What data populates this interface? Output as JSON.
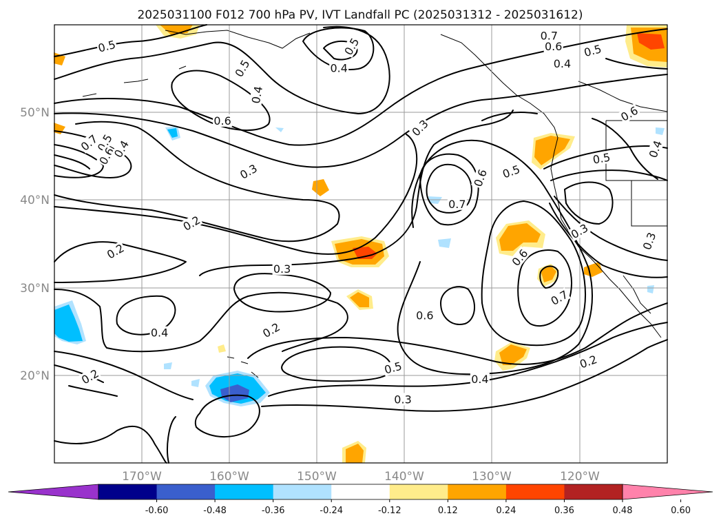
{
  "title": "2025031100 F012 700 hPa PV, IVT Landfall PC (2025031312 - 2025031612)",
  "lat_labels": [
    {
      "text": "50°N",
      "lat": 50
    },
    {
      "text": "40°N",
      "lat": 40
    },
    {
      "text": "30°N",
      "lat": 30
    },
    {
      "text": "20°N",
      "lat": 20
    }
  ],
  "lon_labels": [
    {
      "text": "170°W",
      "lon": -170
    },
    {
      "text": "160°W",
      "lon": -160
    },
    {
      "text": "150°W",
      "lon": -150
    },
    {
      "text": "140°W",
      "lon": -140
    },
    {
      "text": "130°W",
      "lon": -130
    },
    {
      "text": "120°W",
      "lon": -120
    }
  ],
  "extent": {
    "lon_min": -180,
    "lon_max": -110,
    "lat_min": 10,
    "lat_max": 60
  },
  "colorbar": {
    "colors": [
      "#9932cc",
      "#00008b",
      "#3a5fcd",
      "#00bfff",
      "#b0e2ff",
      "#ffffff",
      "#ffec8b",
      "#ffa500",
      "#ff4500",
      "#b22222",
      "#ff82ab"
    ],
    "ticks": [
      "-0.60",
      "-0.48",
      "-0.36",
      "-0.24",
      "-0.12",
      "0.12",
      "0.24",
      "0.36",
      "0.48",
      "0.60"
    ]
  },
  "contour_labels": [
    {
      "text": "0.5",
      "lon": -174,
      "lat": 57.5,
      "rot": -15
    },
    {
      "text": "0.5",
      "lon": -158.5,
      "lat": 55,
      "rot": -60
    },
    {
      "text": "0.4",
      "lon": -156.8,
      "lat": 52,
      "rot": -80
    },
    {
      "text": "0.5",
      "lon": -146,
      "lat": 57.5,
      "rot": -60
    },
    {
      "text": "0.4",
      "lon": -147.5,
      "lat": 55,
      "rot": 0
    },
    {
      "text": "0.7",
      "lon": -123.5,
      "lat": 58.7,
      "rot": 0
    },
    {
      "text": "0.6",
      "lon": -123,
      "lat": 57.5,
      "rot": 0
    },
    {
      "text": "0.5",
      "lon": -118.5,
      "lat": 57,
      "rot": -15
    },
    {
      "text": "0.4",
      "lon": -122,
      "lat": 55.5,
      "rot": 0
    },
    {
      "text": "0.6",
      "lon": -114.3,
      "lat": 49.8,
      "rot": -30
    },
    {
      "text": "0.6",
      "lon": -160.8,
      "lat": 49,
      "rot": 0
    },
    {
      "text": "0.3",
      "lon": -138.2,
      "lat": 48.2,
      "rot": -45
    },
    {
      "text": "0.7",
      "lon": -176,
      "lat": 46.5,
      "rot": -40
    },
    {
      "text": "0.5",
      "lon": -174.2,
      "lat": 46.5,
      "rot": -60
    },
    {
      "text": "0.6",
      "lon": -174,
      "lat": 45,
      "rot": -60
    },
    {
      "text": "0.4",
      "lon": -172.3,
      "lat": 45.8,
      "rot": -60
    },
    {
      "text": "0.3",
      "lon": -157.8,
      "lat": 43.2,
      "rot": -30
    },
    {
      "text": "0.6",
      "lon": -131.3,
      "lat": 42.5,
      "rot": -70
    },
    {
      "text": "0.5",
      "lon": -127.8,
      "lat": 43.2,
      "rot": -20
    },
    {
      "text": "0.7",
      "lon": -134,
      "lat": 39.5,
      "rot": 0
    },
    {
      "text": "0.5",
      "lon": -117.5,
      "lat": 44.7,
      "rot": -10
    },
    {
      "text": "0.4",
      "lon": -111.3,
      "lat": 45.8,
      "rot": -70
    },
    {
      "text": "0.2",
      "lon": -164.3,
      "lat": 37.3,
      "rot": -30
    },
    {
      "text": "0.3",
      "lon": -120,
      "lat": 36.4,
      "rot": -30
    },
    {
      "text": "0.3",
      "lon": -112,
      "lat": 35.3,
      "rot": -70
    },
    {
      "text": "0.2",
      "lon": -173,
      "lat": 34.1,
      "rot": -30
    },
    {
      "text": "0.3",
      "lon": -154,
      "lat": 32.1,
      "rot": 0
    },
    {
      "text": "0.6",
      "lon": -126.8,
      "lat": 33.4,
      "rot": -50
    },
    {
      "text": "0.7",
      "lon": -122.3,
      "lat": 28.8,
      "rot": -30
    },
    {
      "text": "0.6",
      "lon": -137.7,
      "lat": 26.8,
      "rot": 0
    },
    {
      "text": "0.4",
      "lon": -168,
      "lat": 24.8,
      "rot": 0
    },
    {
      "text": "0.2",
      "lon": -155.2,
      "lat": 25.1,
      "rot": -30
    },
    {
      "text": "0.5",
      "lon": -141.3,
      "lat": 20.8,
      "rot": -15
    },
    {
      "text": "0.4",
      "lon": -131.4,
      "lat": 19.5,
      "rot": 0
    },
    {
      "text": "0.3",
      "lon": -140.2,
      "lat": 17.2,
      "rot": 0
    },
    {
      "text": "0.2",
      "lon": -119,
      "lat": 21.5,
      "rot": -20
    },
    {
      "text": "0.2",
      "lon": -175.9,
      "lat": 19.8,
      "rot": -30
    }
  ]
}
